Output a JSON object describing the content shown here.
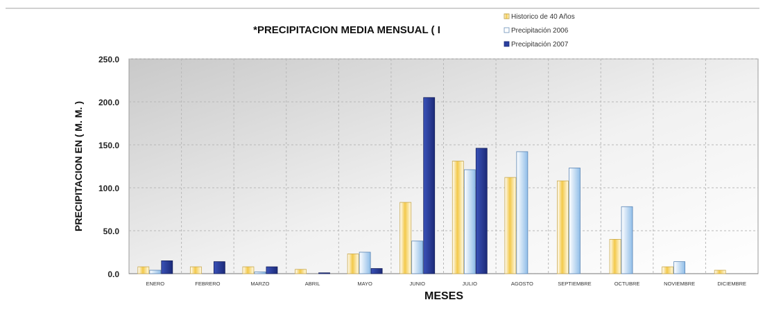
{
  "chart_data": {
    "type": "bar",
    "title": "*PRECIPITACION MEDIA MENSUAL ( I",
    "xlabel": "MESES",
    "ylabel": "PRECIPITACION EN ( M. M. )",
    "ylim": [
      0,
      250
    ],
    "yticks": [
      "0.0",
      "50.0",
      "100.0",
      "150.0",
      "200.0",
      "250.0"
    ],
    "ytick_values": [
      0,
      50,
      100,
      150,
      200,
      250
    ],
    "grid": true,
    "legend_position": "top-right",
    "categories": [
      "ENERO",
      "FEBRERO",
      "MARZO",
      "ABRIL",
      "MAYO",
      "JUNIO",
      "JULIO",
      "AGOSTO",
      "SEPTIEMBRE",
      "OCTUBRE",
      "NOVIEMBRE",
      "DICIEMBRE"
    ],
    "series": [
      {
        "name": "Historico de 40 Años",
        "color": "#f2d27a",
        "values": [
          8,
          8,
          8,
          5,
          23,
          83,
          131,
          112,
          108,
          40,
          8,
          4
        ]
      },
      {
        "name": "Precipitación 2006",
        "color": "#9fc9ee",
        "values": [
          4,
          0,
          2,
          0,
          25,
          38,
          121,
          142,
          123,
          78,
          14,
          0
        ]
      },
      {
        "name": "Precipitación 2007",
        "color": "#2b3f9e",
        "values": [
          15,
          14,
          8,
          1,
          6,
          205,
          146,
          0,
          0,
          0,
          0,
          0
        ]
      }
    ]
  }
}
